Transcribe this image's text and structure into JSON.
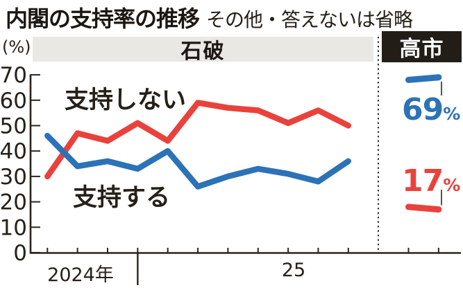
{
  "header": {
    "title": "内閣の支持率の推移",
    "subtitle": "その他・答えないは省略"
  },
  "chart_data": {
    "type": "line",
    "title": "内閣の支持率の推移",
    "subtitle": "その他・答えないは省略",
    "unit_label": "(%)",
    "ylim": [
      0,
      70
    ],
    "grid": false,
    "legend_position": "inline-labels",
    "y_ticks": [
      70,
      60,
      50,
      40,
      30,
      20,
      10,
      0
    ],
    "x_axis": {
      "label_2024": "2024年",
      "label_2025": "25"
    },
    "period_bands": [
      {
        "label": "石破",
        "style": "gray"
      },
      {
        "label": "高市",
        "style": "black"
      }
    ],
    "series": [
      {
        "name": "支持しない",
        "color": "#e9423c",
        "values": [
          30,
          47,
          44,
          51,
          44,
          59,
          57,
          56,
          51,
          56,
          50
        ]
      },
      {
        "name": "支持する",
        "color": "#2c72b7",
        "values": [
          46,
          34,
          36,
          33,
          40,
          26,
          30,
          33,
          31,
          28,
          36
        ]
      }
    ],
    "takaichi_panel": {
      "approve": {
        "value": "69",
        "unit": "%",
        "color": "#2c72b7",
        "segment_values": [
          68,
          69
        ]
      },
      "disapprove": {
        "value": "17",
        "unit": "%",
        "color": "#e9423c",
        "segment_values": [
          18,
          17
        ]
      }
    },
    "axis_color": "#2a241d"
  }
}
